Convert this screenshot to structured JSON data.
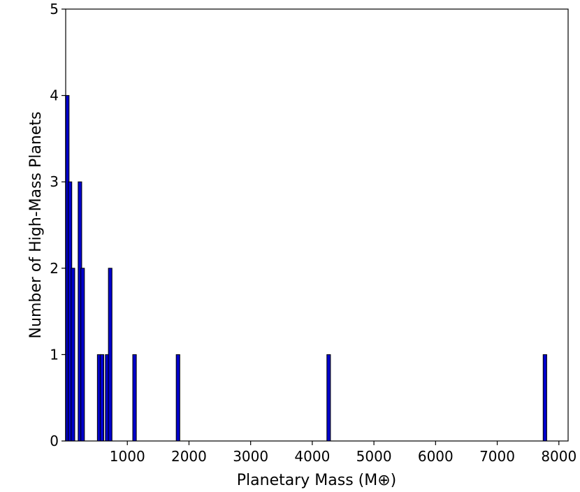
{
  "chart_data": {
    "type": "bar",
    "title": "",
    "xlabel": "Planetary Mass (M⊕)",
    "ylabel": "Number of High-Mass Planets",
    "xlim": [
      0,
      8150
    ],
    "ylim": [
      0,
      5
    ],
    "xticks": [
      1000,
      2000,
      3000,
      4000,
      5000,
      6000,
      7000,
      8000
    ],
    "yticks": [
      0,
      1,
      2,
      3,
      4,
      5
    ],
    "bar_width": 58,
    "bar_color": "#0000cc",
    "edge_color": "#000000",
    "grid": false,
    "bars": [
      {
        "x": 26,
        "value": 4
      },
      {
        "x": 70,
        "value": 3
      },
      {
        "x": 118,
        "value": 2
      },
      {
        "x": 231,
        "value": 3
      },
      {
        "x": 275,
        "value": 2
      },
      {
        "x": 543,
        "value": 1
      },
      {
        "x": 589,
        "value": 1
      },
      {
        "x": 673,
        "value": 1
      },
      {
        "x": 722,
        "value": 2
      },
      {
        "x": 1117,
        "value": 1
      },
      {
        "x": 1822,
        "value": 1
      },
      {
        "x": 4266,
        "value": 1
      },
      {
        "x": 7774,
        "value": 1
      }
    ]
  }
}
